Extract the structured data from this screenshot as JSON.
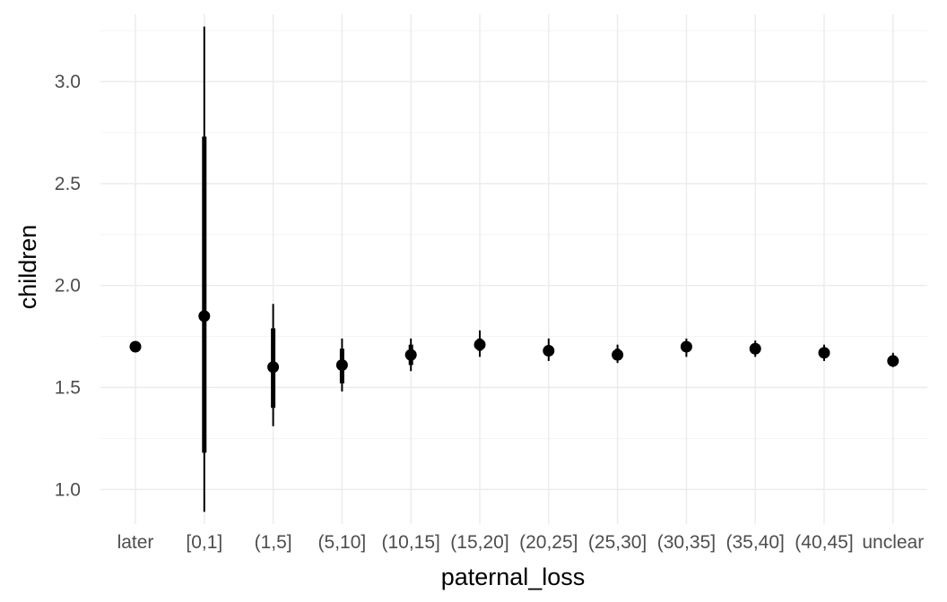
{
  "chart_data": {
    "type": "pointrange",
    "xlabel": "paternal_loss",
    "ylabel": "children",
    "categories": [
      "later",
      "[0,1]",
      "(1,5]",
      "(5,10]",
      "(10,15]",
      "(15,20]",
      "(20,25]",
      "(25,30]",
      "(30,35]",
      "(35,40]",
      "(40,45]",
      "unclear"
    ],
    "ylim": [
      0.83,
      3.33
    ],
    "y_ticks": [
      1.0,
      1.5,
      2.0,
      2.5,
      3.0
    ],
    "y_tick_labels": [
      "1.0",
      "1.5",
      "2.0",
      "2.5",
      "3.0"
    ],
    "grid": true,
    "legend": "none",
    "point_color": "#000000",
    "series": [
      {
        "values": [
          1.7,
          1.85,
          1.6,
          1.61,
          1.66,
          1.71,
          1.68,
          1.66,
          1.7,
          1.69,
          1.67,
          1.63
        ],
        "inner_lo": [
          1.685,
          1.18,
          1.4,
          1.52,
          1.61,
          1.68,
          1.66,
          1.64,
          1.675,
          1.67,
          1.65,
          1.61
        ],
        "inner_hi": [
          1.715,
          2.73,
          1.79,
          1.69,
          1.71,
          1.74,
          1.7,
          1.69,
          1.72,
          1.71,
          1.69,
          1.655
        ],
        "outer_lo": [
          1.675,
          0.89,
          1.31,
          1.48,
          1.58,
          1.65,
          1.63,
          1.62,
          1.65,
          1.65,
          1.63,
          1.6
        ],
        "outer_hi": [
          1.725,
          3.27,
          1.91,
          1.74,
          1.74,
          1.78,
          1.74,
          1.71,
          1.74,
          1.73,
          1.71,
          1.67
        ]
      }
    ]
  }
}
